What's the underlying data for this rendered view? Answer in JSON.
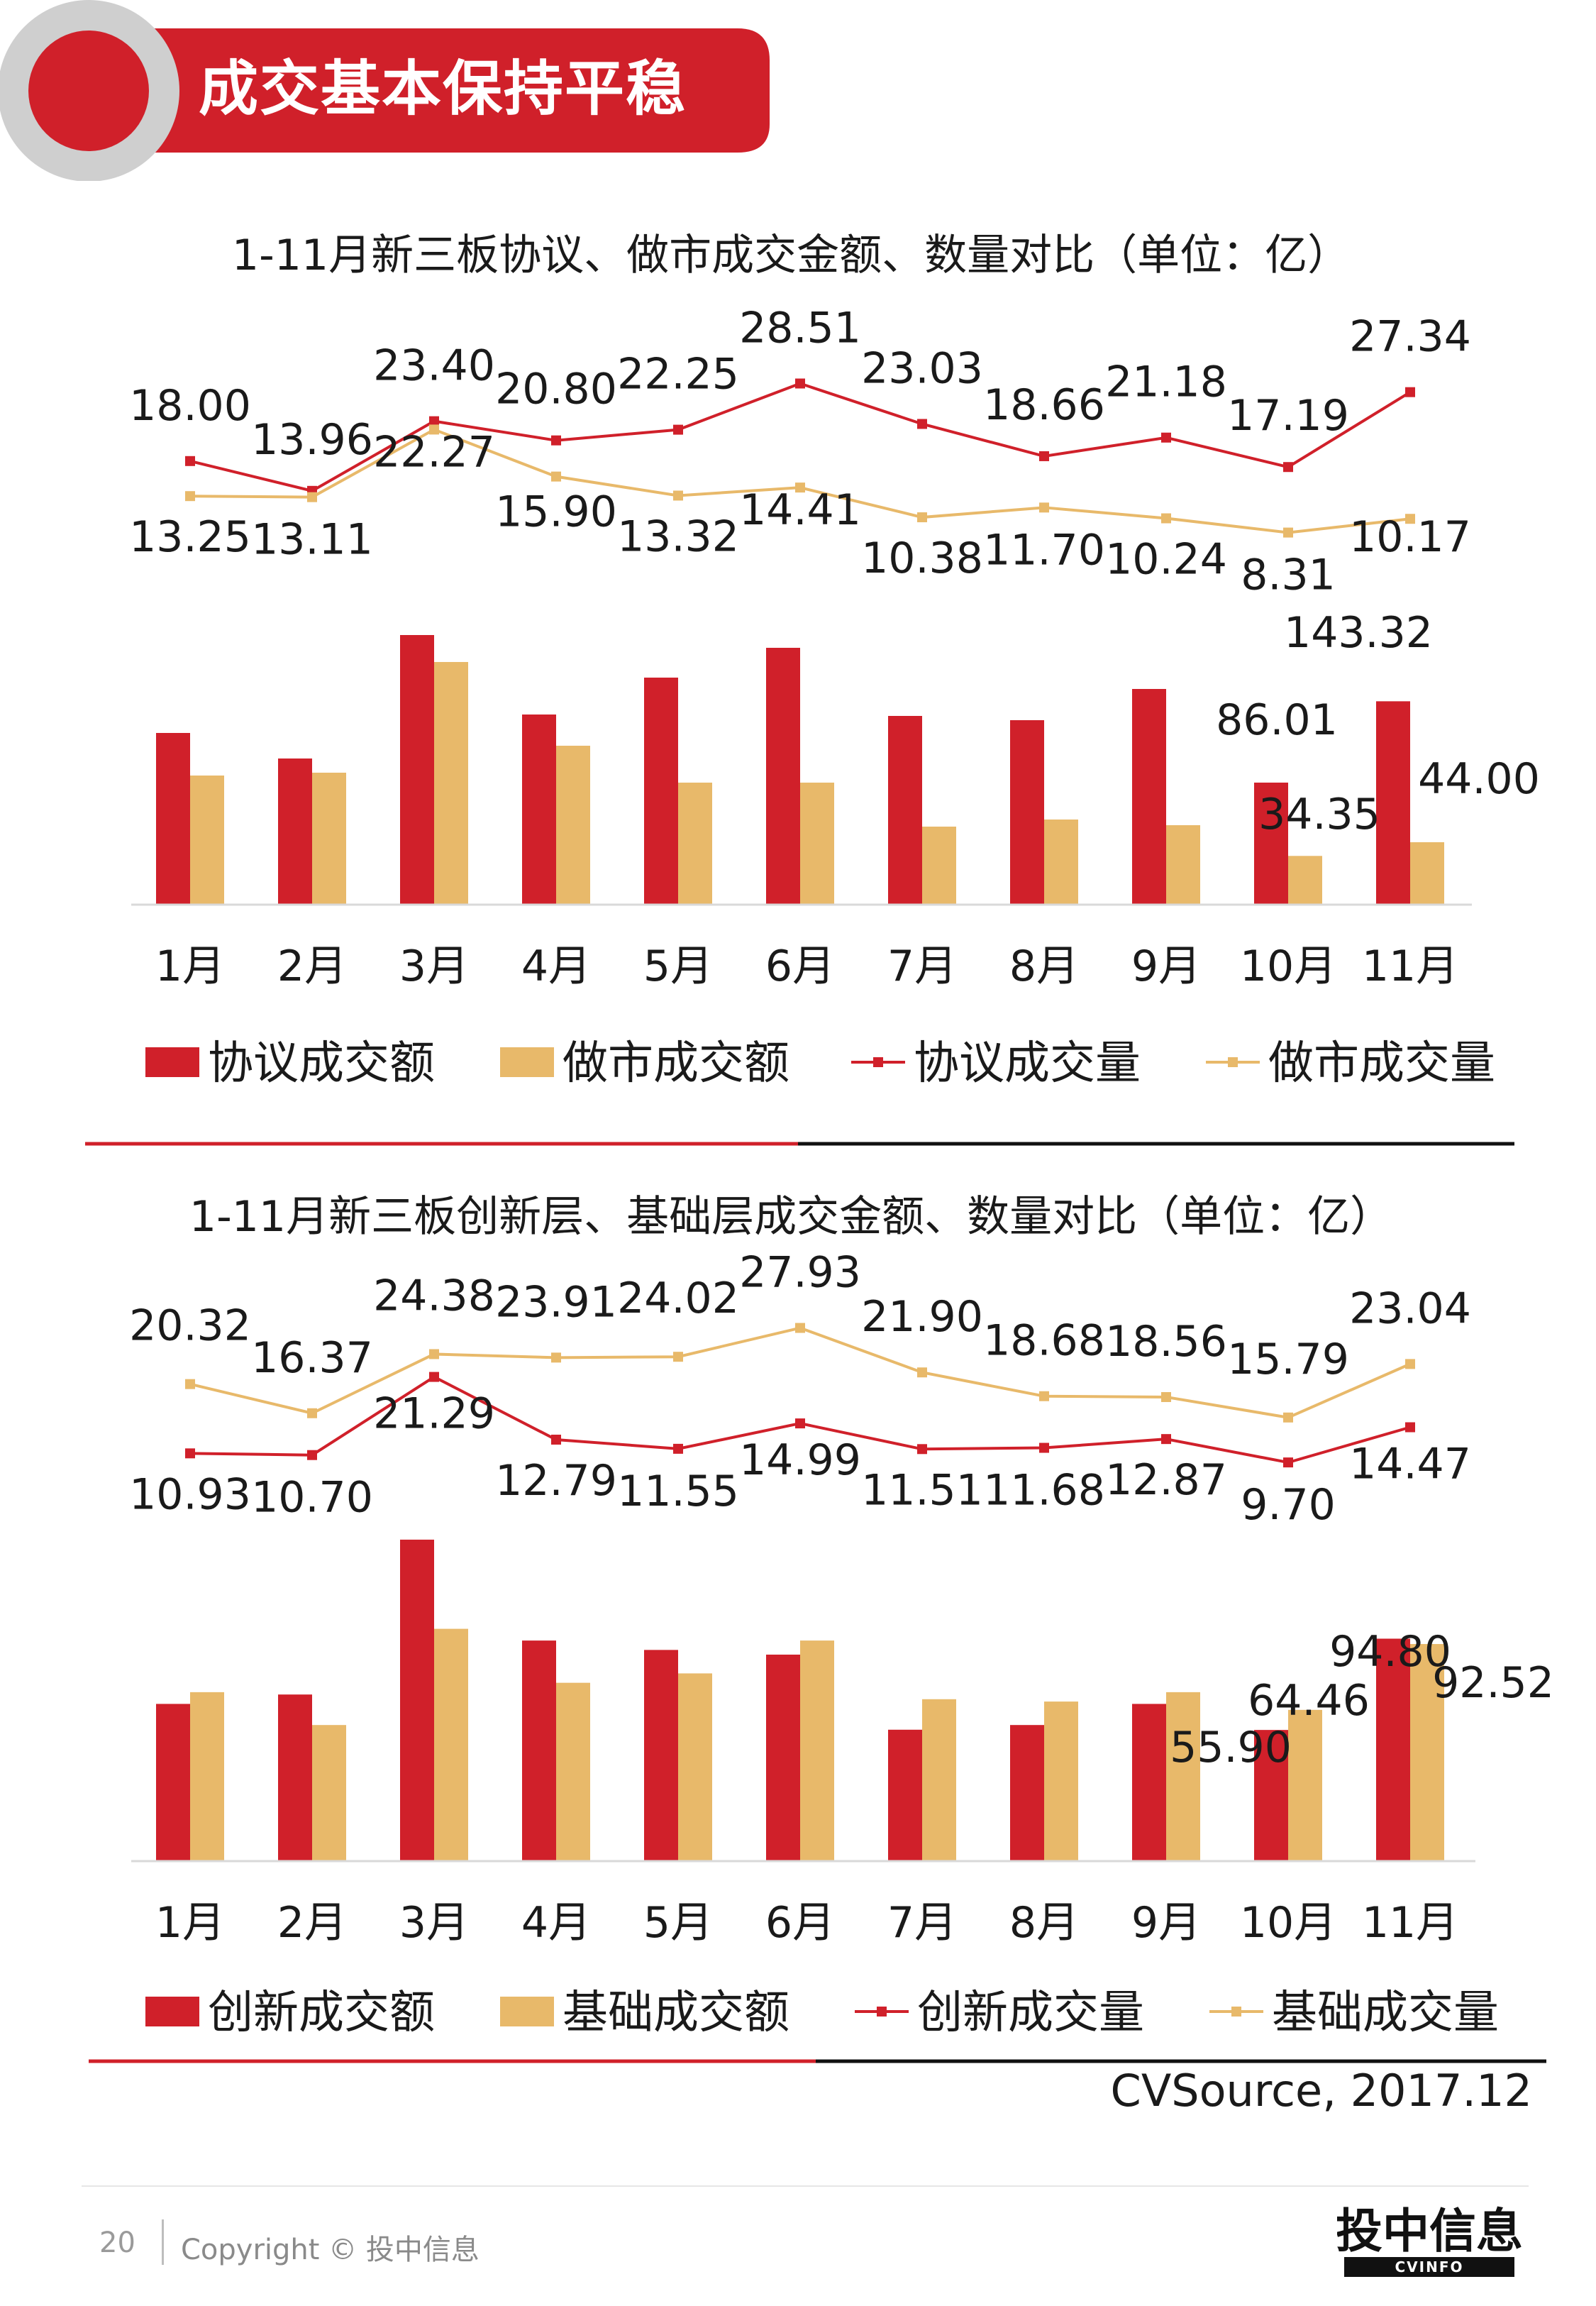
{
  "header": {
    "title": "成交基本保持平稳"
  },
  "chart_data": [
    {
      "type": "bar",
      "title": "1-11月新三板协议、做市成交金额、数量对比（单位：亿）",
      "categories": [
        "1月",
        "2月",
        "3月",
        "4月",
        "5月",
        "6月",
        "7月",
        "8月",
        "9月",
        "10月",
        "11月"
      ],
      "series": [
        {
          "name": "协议成交额",
          "kind": "bar",
          "color": "#d0202a",
          "values": [
            121,
            103,
            190,
            134,
            160,
            181,
            133,
            130,
            152,
            86.01,
            143.32
          ],
          "labels": [
            null,
            null,
            null,
            null,
            null,
            null,
            null,
            null,
            null,
            "86.01",
            "143.32"
          ]
        },
        {
          "name": "做市成交额",
          "kind": "bar",
          "color": "#e8b96a",
          "values": [
            91,
            93,
            171,
            112,
            86,
            86,
            55,
            60,
            56,
            34.35,
            44.0
          ],
          "labels": [
            null,
            null,
            null,
            null,
            null,
            null,
            null,
            null,
            null,
            "34.35",
            "44.00"
          ]
        },
        {
          "name": "协议成交量",
          "kind": "line",
          "color": "#d0202a",
          "values": [
            18.0,
            13.96,
            23.4,
            20.8,
            22.25,
            28.51,
            23.03,
            18.66,
            21.18,
            17.19,
            27.34
          ],
          "labels": [
            "18.00",
            "13.96",
            "23.40",
            "20.80",
            "22.25",
            "28.51",
            "23.03",
            "18.66",
            "21.18",
            "17.19",
            "27.34"
          ]
        },
        {
          "name": "做市成交量",
          "kind": "line",
          "color": "#e8b96a",
          "values": [
            13.25,
            13.11,
            22.27,
            15.9,
            13.32,
            14.41,
            10.38,
            11.7,
            10.24,
            8.31,
            10.17
          ],
          "labels": [
            "13.25",
            "13.11",
            "22.27",
            "15.90",
            "13.32",
            "14.41",
            "10.38",
            "11.70",
            "10.24",
            "8.31",
            "10.17"
          ]
        }
      ],
      "bar_ylim": [
        0,
        200
      ],
      "line_ylim": [
        5,
        30
      ],
      "legend_position": "bottom"
    },
    {
      "type": "bar",
      "title": "1-11月新三板创新层、基础层成交金额、数量对比（单位：亿）",
      "categories": [
        "1月",
        "2月",
        "3月",
        "4月",
        "5月",
        "6月",
        "7月",
        "8月",
        "9月",
        "10月",
        "11月"
      ],
      "series": [
        {
          "name": "创新成交额",
          "kind": "bar",
          "color": "#d0202a",
          "values": [
            67,
            71,
            137,
            94,
            90,
            88,
            56,
            58,
            67,
            55.9,
            94.8
          ],
          "labels": [
            null,
            null,
            null,
            null,
            null,
            null,
            null,
            null,
            null,
            "55.90",
            "94.80"
          ]
        },
        {
          "name": "基础成交额",
          "kind": "bar",
          "color": "#e8b96a",
          "values": [
            72,
            58,
            99,
            76,
            80,
            94,
            69,
            68,
            72,
            64.46,
            92.52
          ],
          "labels": [
            null,
            null,
            null,
            null,
            null,
            null,
            null,
            null,
            null,
            "64.46",
            "92.52"
          ]
        },
        {
          "name": "创新成交量",
          "kind": "line",
          "color": "#d0202a",
          "values": [
            10.93,
            10.7,
            21.29,
            12.79,
            11.55,
            14.99,
            11.51,
            11.68,
            12.87,
            9.7,
            14.47
          ],
          "labels": [
            "10.93",
            "10.70",
            "21.29",
            "12.79",
            "11.55",
            "14.99",
            "11.51",
            "11.68",
            "12.87",
            "9.70",
            "14.47"
          ]
        },
        {
          "name": "基础成交量",
          "kind": "line",
          "color": "#e8b96a",
          "values": [
            20.32,
            16.37,
            24.38,
            23.91,
            24.02,
            27.93,
            21.9,
            18.68,
            18.56,
            15.79,
            23.04
          ],
          "labels": [
            "20.32",
            "16.37",
            "24.38",
            "23.91",
            "24.02",
            "27.93",
            "21.90",
            "18.68",
            "18.56",
            "15.79",
            "23.04"
          ]
        }
      ],
      "bar_ylim": [
        0,
        140
      ],
      "line_ylim": [
        5,
        30
      ],
      "legend_position": "bottom"
    }
  ],
  "source": "CVSource, 2017.12",
  "footer": {
    "page_number": "20",
    "copyright": "Copyright © 投中信息",
    "logo_cn": "投中信息",
    "logo_en": "CVINFO"
  },
  "colors": {
    "brand_red": "#d0202a",
    "gold": "#e8b96a",
    "grey": "#cfcfcf"
  }
}
